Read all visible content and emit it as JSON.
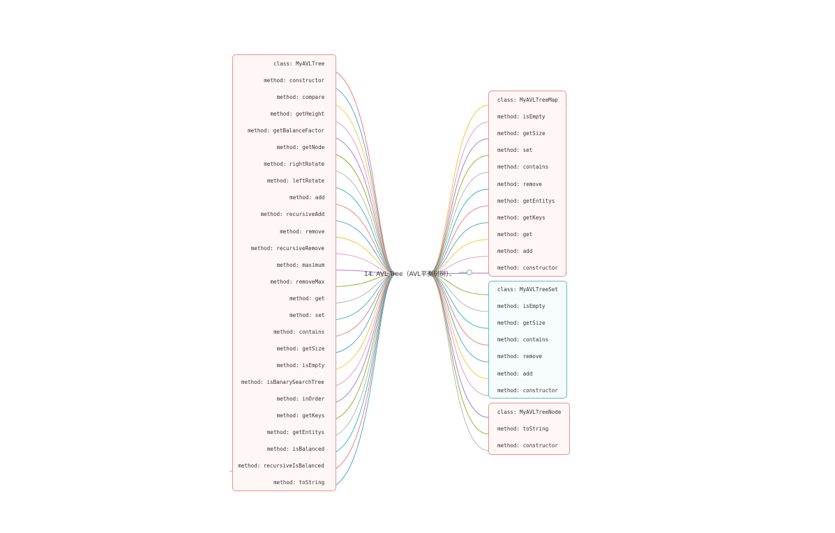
{
  "root": {
    "label": "14. AVL Tree（AVL平衡树树）、"
  },
  "groups": {
    "my_avl_tree": {
      "items": [
        "class: MyAVLTree",
        "method: constructor",
        "method: compare",
        "method: getHeight",
        "method: getBalanceFactor",
        "method: getNode",
        "method: rightRotate",
        "method: leftRotate",
        "method: add",
        "method: recursiveAdd",
        "method: remove",
        "method: recursiveRemove",
        "method: maximum",
        "method: removeMax",
        "method: get",
        "method: set",
        "method: contains",
        "method: getSize",
        "method: isEmpty",
        "method: isBanarySearchTree",
        "method: inOrder",
        "method: getKeys",
        "method: getEntitys",
        "method: isBalanced",
        "method: recursiveIsBalanced",
        "method: toString"
      ]
    },
    "my_avl_tree_map": {
      "items": [
        "class: MyAVLTreeMap",
        "method: isEmpty",
        "method: getSize",
        "method: set",
        "method: contains",
        "method: remove",
        "method: getEntitys",
        "method: getKeys",
        "method: get",
        "method: add",
        "method: constructor"
      ]
    },
    "my_avl_tree_set": {
      "items": [
        "class: MyAVLTreeSet",
        "method: isEmpty",
        "method: getSize",
        "method: contains",
        "method: remove",
        "method: add",
        "method: constructor"
      ]
    },
    "my_avl_tree_node": {
      "items": [
        "class: MyAVLTreeNode",
        "method: toString",
        "method: constructor"
      ]
    }
  },
  "branch_colors": [
    "#e8736c",
    "#3d9fd8",
    "#f2c12e",
    "#e98fc0",
    "#9b6fd6",
    "#8aaa1e",
    "#b0b0b0",
    "#2bb0c0"
  ],
  "box_colors": {
    "pink_border": "#e88f8f",
    "cyan_border": "#5fbcc8"
  }
}
